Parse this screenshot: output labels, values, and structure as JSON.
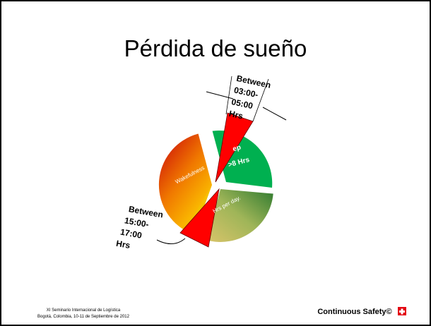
{
  "title": "Pérdida de sueño",
  "labels": {
    "top_callout": [
      "Between",
      "03:00-",
      "05:00",
      "Hrs"
    ],
    "bottom_callout": [
      "Between",
      "15:00-",
      "17:00",
      "Hrs"
    ],
    "sleep": [
      "ep",
      ">8 Hrs"
    ],
    "wakefulness": "Wakefulness",
    "hours": "Hrs per day."
  },
  "footer": {
    "event": "XI Seminario Internacional de Logística",
    "place": "Bogotá, Colombia, 10-11 de Septiembre de 2012",
    "brand": "Continuous Safety©"
  }
}
